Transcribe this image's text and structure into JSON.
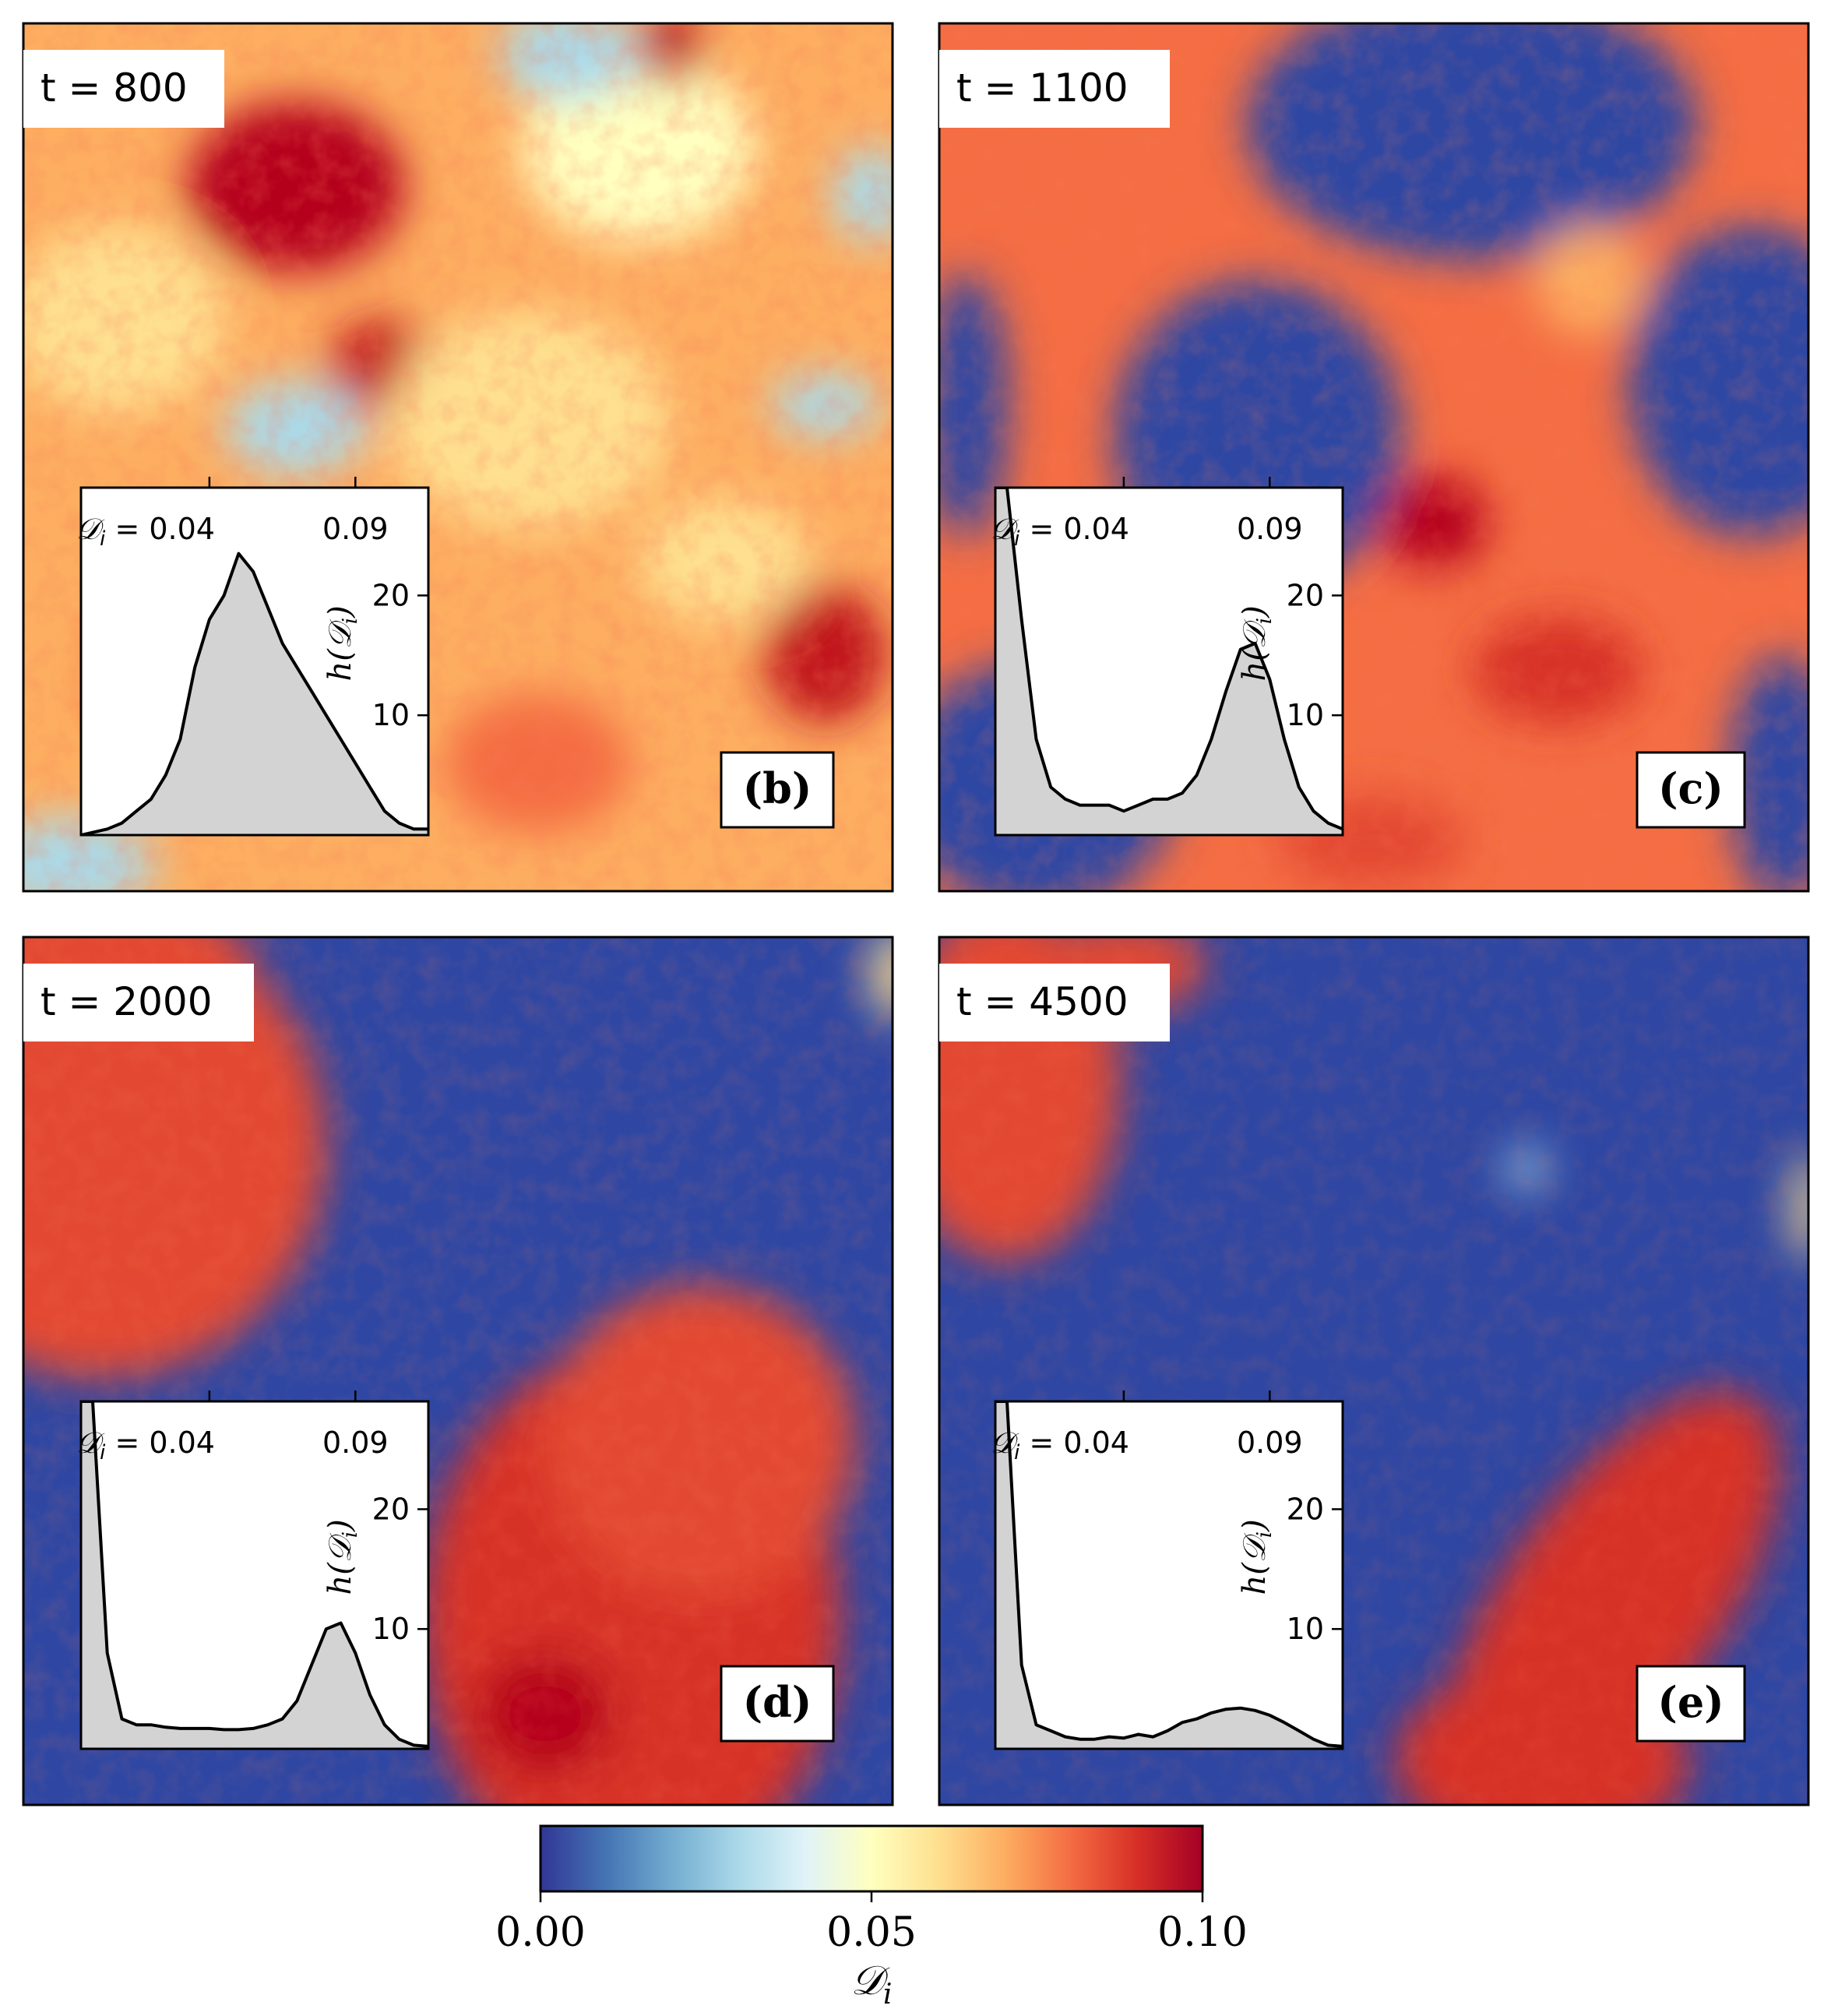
{
  "figure": {
    "colors": {
      "low": "#2f47a3",
      "mid": "#fefcbe",
      "high": "#b5061f",
      "hist_fill": "#d3d3d3",
      "frame": "#000000"
    }
  },
  "chart_data": [
    {
      "type": "heatmap",
      "time_label": "t = 800",
      "panel_label": "(b)",
      "field_description": "mostly orange/red with yellow, few light blue patches",
      "mean_value": 0.065,
      "inset": {
        "type": "area",
        "xlabel": "D_i",
        "ylabel": "h(D_i)",
        "x_ticks": [
          0.04,
          0.09
        ],
        "y_ticks": [
          10,
          20
        ],
        "xlim": [
          -0.004,
          0.115
        ],
        "ylim": [
          0,
          29
        ],
        "x": [
          -0.004,
          0.005,
          0.01,
          0.015,
          0.02,
          0.025,
          0.03,
          0.035,
          0.04,
          0.045,
          0.05,
          0.055,
          0.06,
          0.065,
          0.07,
          0.075,
          0.08,
          0.085,
          0.09,
          0.095,
          0.1,
          0.105,
          0.11,
          0.115
        ],
        "y": [
          0,
          0.5,
          1,
          2,
          3,
          5,
          8,
          14,
          18,
          20,
          23.5,
          22,
          19,
          16,
          14,
          12,
          10,
          8,
          6,
          4,
          2,
          1,
          0.5,
          0.5
        ]
      }
    },
    {
      "type": "heatmap",
      "time_label": "t = 1100",
      "panel_label": "(c)",
      "field_description": "blue domains growing within orange/red region",
      "mean_value": 0.045,
      "inset": {
        "type": "area",
        "xlabel": "D_i",
        "ylabel": "h(D_i)",
        "x_ticks": [
          0.04,
          0.09
        ],
        "y_ticks": [
          10,
          20
        ],
        "xlim": [
          -0.004,
          0.115
        ],
        "ylim": [
          0,
          29
        ],
        "x": [
          -0.004,
          0.0,
          0.005,
          0.01,
          0.015,
          0.02,
          0.025,
          0.03,
          0.035,
          0.04,
          0.045,
          0.05,
          0.055,
          0.06,
          0.065,
          0.07,
          0.075,
          0.08,
          0.085,
          0.09,
          0.095,
          0.1,
          0.105,
          0.11,
          0.115
        ],
        "y": [
          29,
          29,
          18,
          8,
          4,
          3,
          2.5,
          2.5,
          2.5,
          2,
          2.5,
          3,
          3,
          3.5,
          5,
          8,
          12,
          15.5,
          16,
          13,
          8,
          4,
          2,
          1,
          0.5
        ]
      }
    },
    {
      "type": "heatmap",
      "time_label": "t = 2000",
      "panel_label": "(d)",
      "field_description": "mostly blue with two large orange/red domains",
      "mean_value": 0.03,
      "inset": {
        "type": "area",
        "xlabel": "D_i",
        "ylabel": "h(D_i)",
        "x_ticks": [
          0.04,
          0.09
        ],
        "y_ticks": [
          10,
          20
        ],
        "xlim": [
          -0.004,
          0.115
        ],
        "ylim": [
          0,
          29
        ],
        "x": [
          -0.004,
          0.0,
          0.005,
          0.01,
          0.015,
          0.02,
          0.025,
          0.03,
          0.035,
          0.04,
          0.045,
          0.05,
          0.055,
          0.06,
          0.065,
          0.07,
          0.075,
          0.08,
          0.085,
          0.09,
          0.095,
          0.1,
          0.105,
          0.11,
          0.115
        ],
        "y": [
          29,
          29,
          8,
          2.5,
          2,
          2,
          1.8,
          1.7,
          1.7,
          1.7,
          1.6,
          1.6,
          1.7,
          2,
          2.5,
          4,
          7,
          10,
          10.5,
          8,
          4.5,
          2,
          0.8,
          0.3,
          0.2
        ]
      }
    },
    {
      "type": "heatmap",
      "time_label": "t = 4500",
      "panel_label": "(e)",
      "field_description": "predominantly blue with one diagonal red band and a red corner",
      "mean_value": 0.02,
      "inset": {
        "type": "area",
        "xlabel": "D_i",
        "ylabel": "h(D_i)",
        "x_ticks": [
          0.04,
          0.09
        ],
        "y_ticks": [
          10,
          20
        ],
        "xlim": [
          -0.004,
          0.115
        ],
        "ylim": [
          0,
          29
        ],
        "x": [
          -0.004,
          0.0,
          0.005,
          0.01,
          0.015,
          0.02,
          0.025,
          0.03,
          0.035,
          0.04,
          0.045,
          0.05,
          0.055,
          0.06,
          0.065,
          0.07,
          0.075,
          0.08,
          0.085,
          0.09,
          0.095,
          0.1,
          0.105,
          0.11,
          0.115
        ],
        "y": [
          29,
          29,
          7,
          2,
          1.5,
          1,
          0.8,
          0.8,
          1,
          0.9,
          1.2,
          1,
          1.5,
          2.2,
          2.5,
          3,
          3.3,
          3.4,
          3.2,
          2.8,
          2.2,
          1.5,
          0.8,
          0.3,
          0.2
        ]
      }
    },
    {
      "type": "colorbar",
      "min": 0.0,
      "max": 0.1,
      "ticks": [
        0.0,
        0.05,
        0.1
      ],
      "tick_labels": [
        "0.00",
        "0.05",
        "0.10"
      ],
      "label": "D_i",
      "colormap": "RdYlBu_r"
    }
  ]
}
